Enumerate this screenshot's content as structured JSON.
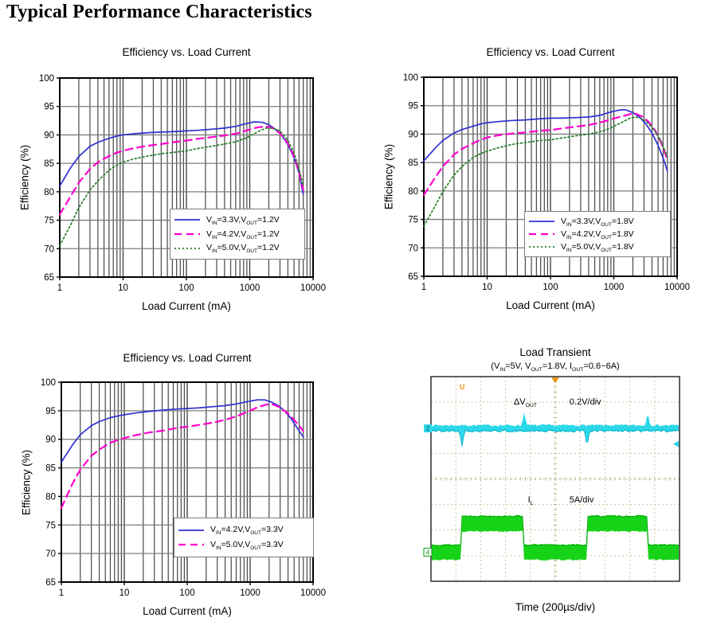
{
  "page": {
    "heading": "Typical Performance Characteristics"
  },
  "colors": {
    "series_blue": "#2f2fd3",
    "series_magenta": "#ff00cc",
    "series_green": "#267e26",
    "grid_vertical": "#474747",
    "grid_horizontal": "#7d7d7d",
    "frame": "#000000",
    "scope_grid": "#c8c89c",
    "scope_trace_cyan": "#2bd8e8",
    "scope_trace_green": "#17d317",
    "scope_marker_orange": "#ef9410"
  },
  "chart_data": [
    {
      "id": "efficiency-vout-1v2",
      "type": "line",
      "title": "Efficiency vs. Load Current",
      "xlabel": "Load Current (mA)",
      "ylabel": "Efficiency (%)",
      "x_scale": "log",
      "x_range": [
        1,
        10000
      ],
      "x_ticks": [
        1,
        10,
        100,
        1000,
        10000
      ],
      "y_range": [
        65,
        100
      ],
      "y_ticks": [
        65,
        70,
        75,
        80,
        85,
        90,
        95,
        100
      ],
      "grid": true,
      "legend_position": "lower-right",
      "series": [
        {
          "name": "vin-3v3",
          "label": "V_{IN}=3.3V,V_{OUT}=1.2V",
          "color": "#2f2fd3",
          "dash": "solid",
          "points": [
            [
              1,
              81
            ],
            [
              1.5,
              84.3
            ],
            [
              2,
              86.2
            ],
            [
              3,
              88
            ],
            [
              4,
              88.7
            ],
            [
              6,
              89.4
            ],
            [
              8,
              89.8
            ],
            [
              10,
              90
            ],
            [
              15,
              90.2
            ],
            [
              25,
              90.4
            ],
            [
              40,
              90.5
            ],
            [
              70,
              90.6
            ],
            [
              100,
              90.7
            ],
            [
              150,
              90.8
            ],
            [
              250,
              91
            ],
            [
              400,
              91.2
            ],
            [
              600,
              91.5
            ],
            [
              900,
              92
            ],
            [
              1200,
              92.3
            ],
            [
              1600,
              92.2
            ],
            [
              2000,
              91.8
            ],
            [
              2600,
              90.9
            ],
            [
              3200,
              89.9
            ],
            [
              4000,
              88.3
            ],
            [
              5000,
              86
            ],
            [
              6000,
              83.3
            ],
            [
              7000,
              79.5
            ]
          ]
        },
        {
          "name": "vin-4v2",
          "label": "V_{IN}=4.2V,V_{OUT}=1.2V",
          "color": "#ff00cc",
          "dash": "dashed",
          "points": [
            [
              1,
              76
            ],
            [
              1.5,
              79.3
            ],
            [
              2,
              81.6
            ],
            [
              3,
              84
            ],
            [
              4,
              85.2
            ],
            [
              6,
              86.3
            ],
            [
              8,
              86.9
            ],
            [
              10,
              87.2
            ],
            [
              15,
              87.7
            ],
            [
              25,
              88.1
            ],
            [
              40,
              88.4
            ],
            [
              70,
              88.8
            ],
            [
              100,
              89
            ],
            [
              150,
              89.3
            ],
            [
              250,
              89.6
            ],
            [
              400,
              89.9
            ],
            [
              600,
              90.2
            ],
            [
              900,
              90.8
            ],
            [
              1300,
              91.3
            ],
            [
              1800,
              91.5
            ],
            [
              2300,
              91.2
            ],
            [
              3000,
              90.3
            ],
            [
              4000,
              88.5
            ],
            [
              5000,
              86.3
            ],
            [
              6000,
              83.5
            ],
            [
              7000,
              80.3
            ]
          ]
        },
        {
          "name": "vin-5v0",
          "label": "V_{IN}=5.0V,V_{OUT}=1.2V",
          "color": "#267e26",
          "dash": "dotted",
          "points": [
            [
              1,
              70.5
            ],
            [
              1.5,
              74.3
            ],
            [
              2,
              77.2
            ],
            [
              3,
              80.3
            ],
            [
              4,
              81.9
            ],
            [
              6,
              83.8
            ],
            [
              8,
              84.7
            ],
            [
              10,
              85.2
            ],
            [
              15,
              85.8
            ],
            [
              25,
              86.3
            ],
            [
              40,
              86.7
            ],
            [
              70,
              87
            ],
            [
              100,
              87.2
            ],
            [
              150,
              87.6
            ],
            [
              250,
              88
            ],
            [
              400,
              88.4
            ],
            [
              600,
              88.8
            ],
            [
              900,
              89.5
            ],
            [
              1300,
              90.5
            ],
            [
              1800,
              91.2
            ],
            [
              2300,
              91.2
            ],
            [
              3000,
              90.7
            ],
            [
              4000,
              89
            ],
            [
              5000,
              86.8
            ],
            [
              6000,
              84
            ],
            [
              7000,
              81
            ]
          ]
        }
      ]
    },
    {
      "id": "efficiency-vout-1v8",
      "type": "line",
      "title": "Efficiency vs. Load Current",
      "xlabel": "Load Current (mA)",
      "ylabel": "Efficiency (%)",
      "x_scale": "log",
      "x_range": [
        1,
        10000
      ],
      "x_ticks": [
        1,
        10,
        100,
        1000,
        10000
      ],
      "y_range": [
        65,
        100
      ],
      "y_ticks": [
        65,
        70,
        75,
        80,
        85,
        90,
        95,
        100
      ],
      "grid": true,
      "legend_position": "lower-right",
      "series": [
        {
          "name": "vin-3v3",
          "label": "V_{IN}=3.3V,V_{OUT}=1.8V",
          "color": "#2f2fd3",
          "dash": "solid",
          "points": [
            [
              1,
              85.3
            ],
            [
              1.5,
              87.5
            ],
            [
              2,
              88.9
            ],
            [
              3,
              90.2
            ],
            [
              4,
              90.8
            ],
            [
              6,
              91.4
            ],
            [
              8,
              91.8
            ],
            [
              10,
              92
            ],
            [
              15,
              92.2
            ],
            [
              25,
              92.4
            ],
            [
              40,
              92.5
            ],
            [
              70,
              92.7
            ],
            [
              100,
              92.8
            ],
            [
              150,
              92.8
            ],
            [
              250,
              92.9
            ],
            [
              400,
              93
            ],
            [
              600,
              93.3
            ],
            [
              900,
              93.9
            ],
            [
              1200,
              94.2
            ],
            [
              1500,
              94.3
            ],
            [
              2000,
              93.8
            ],
            [
              2600,
              92.9
            ],
            [
              3200,
              91.8
            ],
            [
              4000,
              90.2
            ],
            [
              5000,
              88
            ],
            [
              6000,
              85.8
            ],
            [
              7000,
              83.5
            ]
          ]
        },
        {
          "name": "vin-4v2",
          "label": "V_{IN}=4.2V,V_{OUT}=1.8V",
          "color": "#ff00cc",
          "dash": "dashed",
          "points": [
            [
              1,
              79.3
            ],
            [
              1.5,
              82.3
            ],
            [
              2,
              84.3
            ],
            [
              3,
              86.4
            ],
            [
              4,
              87.4
            ],
            [
              6,
              88.4
            ],
            [
              8,
              89
            ],
            [
              10,
              89.4
            ],
            [
              15,
              89.8
            ],
            [
              25,
              90.1
            ],
            [
              40,
              90.3
            ],
            [
              70,
              90.6
            ],
            [
              100,
              90.7
            ],
            [
              150,
              91
            ],
            [
              250,
              91.3
            ],
            [
              400,
              91.6
            ],
            [
              600,
              92
            ],
            [
              900,
              92.6
            ],
            [
              1300,
              93.1
            ],
            [
              1800,
              93.5
            ],
            [
              2200,
              93.6
            ],
            [
              2800,
              93.1
            ],
            [
              3500,
              92.2
            ],
            [
              4500,
              90.6
            ],
            [
              5500,
              88.7
            ],
            [
              7000,
              85.5
            ]
          ]
        },
        {
          "name": "vin-5v0",
          "label": "V_{IN}=5.0V,V_{OUT}=1.8V",
          "color": "#267e26",
          "dash": "dotted",
          "points": [
            [
              1,
              73.8
            ],
            [
              1.5,
              77.3
            ],
            [
              2,
              79.9
            ],
            [
              3,
              82.8
            ],
            [
              4,
              84.3
            ],
            [
              6,
              85.9
            ],
            [
              8,
              86.6
            ],
            [
              10,
              87
            ],
            [
              15,
              87.6
            ],
            [
              25,
              88.2
            ],
            [
              40,
              88.5
            ],
            [
              70,
              88.9
            ],
            [
              100,
              89
            ],
            [
              150,
              89.3
            ],
            [
              250,
              89.7
            ],
            [
              400,
              90
            ],
            [
              600,
              90.4
            ],
            [
              900,
              91.1
            ],
            [
              1300,
              92
            ],
            [
              1800,
              92.8
            ],
            [
              2200,
              93
            ],
            [
              2800,
              92.7
            ],
            [
              3500,
              91.9
            ],
            [
              4500,
              90.5
            ],
            [
              5500,
              88.9
            ],
            [
              7000,
              86
            ]
          ]
        }
      ]
    },
    {
      "id": "efficiency-vout-3v3",
      "type": "line",
      "title": "Efficiency vs. Load Current",
      "xlabel": "Load Current (mA)",
      "ylabel": "Efficiency (%)",
      "x_scale": "log",
      "x_range": [
        1,
        10000
      ],
      "x_ticks": [
        1,
        10,
        100,
        1000,
        10000
      ],
      "y_range": [
        65,
        100
      ],
      "y_ticks": [
        65,
        70,
        75,
        80,
        85,
        90,
        95,
        100
      ],
      "grid": true,
      "legend_position": "lower-right",
      "series": [
        {
          "name": "vin-4v2",
          "label": "V_{IN}=4.2V,V_{OUT}=3.3V",
          "color": "#2f2fd3",
          "dash": "solid",
          "points": [
            [
              1,
              86
            ],
            [
              1.5,
              89
            ],
            [
              2,
              90.8
            ],
            [
              3,
              92.4
            ],
            [
              4,
              93.1
            ],
            [
              6,
              93.8
            ],
            [
              8,
              94.1
            ],
            [
              10,
              94.3
            ],
            [
              15,
              94.6
            ],
            [
              25,
              94.9
            ],
            [
              40,
              95.1
            ],
            [
              70,
              95.3
            ],
            [
              100,
              95.4
            ],
            [
              150,
              95.5
            ],
            [
              250,
              95.7
            ],
            [
              400,
              95.9
            ],
            [
              600,
              96.2
            ],
            [
              900,
              96.6
            ],
            [
              1300,
              96.9
            ],
            [
              1700,
              96.9
            ],
            [
              2200,
              96.5
            ],
            [
              2800,
              95.9
            ],
            [
              3500,
              95
            ],
            [
              4500,
              93.6
            ],
            [
              5500,
              92.1
            ],
            [
              7000,
              90.4
            ]
          ]
        },
        {
          "name": "vin-5v0",
          "label": "V_{IN}=5.0V,V_{OUT}=3.3V",
          "color": "#ff00cc",
          "dash": "dashed",
          "points": [
            [
              1,
              78
            ],
            [
              1.5,
              82.2
            ],
            [
              2,
              84.7
            ],
            [
              3,
              87.1
            ],
            [
              4,
              88.2
            ],
            [
              6,
              89.4
            ],
            [
              8,
              89.9
            ],
            [
              10,
              90.2
            ],
            [
              15,
              90.7
            ],
            [
              25,
              91.2
            ],
            [
              40,
              91.5
            ],
            [
              70,
              92
            ],
            [
              100,
              92.2
            ],
            [
              150,
              92.5
            ],
            [
              250,
              92.9
            ],
            [
              400,
              93.4
            ],
            [
              600,
              94
            ],
            [
              900,
              94.8
            ],
            [
              1300,
              95.6
            ],
            [
              1800,
              96.1
            ],
            [
              2300,
              96.1
            ],
            [
              3000,
              95.6
            ],
            [
              4000,
              94.5
            ],
            [
              5000,
              93.4
            ],
            [
              6000,
              92.4
            ],
            [
              7000,
              91.4
            ]
          ]
        }
      ]
    },
    {
      "id": "load-transient",
      "type": "oscilloscope",
      "title": "Load Transient",
      "subtitle": "(V_{IN}=5V, V_{OUT}=1.8V, I_{OUT}=0.6~6A)",
      "xlabel": "Time (200µs/div)",
      "grid_divisions": {
        "cols": 10,
        "rows": 8
      },
      "trigger_marker": "U",
      "traces": [
        {
          "name": "vout-deviation",
          "label": "ΔV_{OUT}",
          "scale": "0.2V/div",
          "color": "#2bd8e8",
          "channel": "2",
          "baseline_frac": 0.253,
          "events": [
            {
              "x_frac": 0.125,
              "dir": "down",
              "to_frac": 0.345
            },
            {
              "x_frac": 0.375,
              "dir": "up",
              "to_frac": 0.175
            },
            {
              "x_frac": 0.628,
              "dir": "down",
              "to_frac": 0.345
            },
            {
              "x_frac": 0.872,
              "dir": "up",
              "to_frac": 0.175
            }
          ]
        },
        {
          "name": "load-current",
          "label": "I_{L}",
          "scale": "5A/div",
          "color": "#17d317",
          "channel": "4",
          "low_frac": [
            0.823,
            0.892
          ],
          "high_frac": [
            0.682,
            0.753
          ],
          "edge_fracs": [
            0.125,
            0.375,
            0.628,
            0.872
          ]
        }
      ]
    }
  ]
}
